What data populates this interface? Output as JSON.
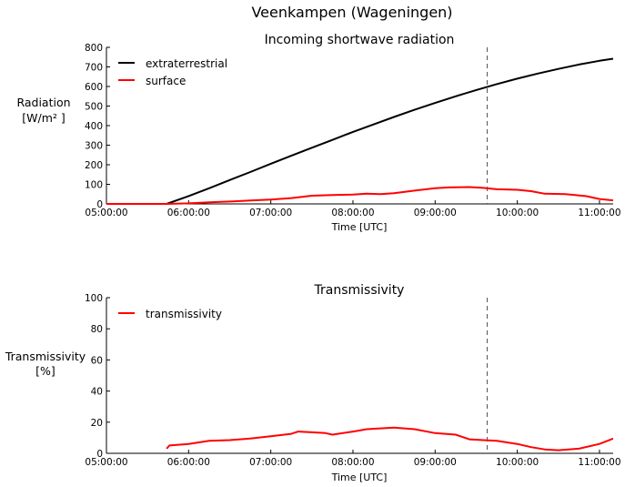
{
  "figure": {
    "title": "Veenkampen (Wageningen)"
  },
  "chart_data": [
    {
      "type": "line",
      "title": "Incoming shortwave radiation",
      "xlabel": "Time [UTC]",
      "ylabel_lines": [
        "Radiation",
        "[W/m² ]"
      ],
      "xlim": [
        "05:00:00",
        "11:10:00"
      ],
      "ylim": [
        0,
        800
      ],
      "y_ticks": [
        "0",
        "100",
        "200",
        "300",
        "400",
        "500",
        "600",
        "700",
        "800"
      ],
      "x_ticks": [
        "05:00:00",
        "06:00:00",
        "07:00:00",
        "08:00:00",
        "09:00:00",
        "10:00:00",
        "11:00:00"
      ],
      "grid": false,
      "legend_position": "top-left",
      "vline_time": "09:38:00",
      "series": [
        {
          "name": "extraterrestrial",
          "color": "#000000",
          "points": [
            [
              "05:00:00",
              0
            ],
            [
              "05:44:00",
              0
            ],
            [
              "06:00:00",
              40
            ],
            [
              "06:15:00",
              80
            ],
            [
              "06:30:00",
              122
            ],
            [
              "06:45:00",
              163
            ],
            [
              "07:00:00",
              205
            ],
            [
              "07:15:00",
              246
            ],
            [
              "07:30:00",
              287
            ],
            [
              "07:45:00",
              327
            ],
            [
              "08:00:00",
              368
            ],
            [
              "08:15:00",
              406
            ],
            [
              "08:30:00",
              444
            ],
            [
              "08:45:00",
              481
            ],
            [
              "09:00:00",
              516
            ],
            [
              "09:15:00",
              550
            ],
            [
              "09:30:00",
              582
            ],
            [
              "09:45:00",
              612
            ],
            [
              "10:00:00",
              640
            ],
            [
              "10:15:00",
              666
            ],
            [
              "10:30:00",
              690
            ],
            [
              "10:45:00",
              712
            ],
            [
              "11:00:00",
              731
            ],
            [
              "11:10:00",
              742
            ]
          ]
        },
        {
          "name": "surface",
          "color": "#ff0000",
          "points": [
            [
              "05:00:00",
              0
            ],
            [
              "05:44:00",
              0
            ],
            [
              "06:00:00",
              3
            ],
            [
              "06:15:00",
              8
            ],
            [
              "06:30:00",
              12
            ],
            [
              "06:45:00",
              17
            ],
            [
              "07:00:00",
              22
            ],
            [
              "07:15:00",
              30
            ],
            [
              "07:30:00",
              42
            ],
            [
              "07:45:00",
              45
            ],
            [
              "08:00:00",
              48
            ],
            [
              "08:10:00",
              52
            ],
            [
              "08:20:00",
              50
            ],
            [
              "08:30:00",
              55
            ],
            [
              "08:45:00",
              68
            ],
            [
              "09:00:00",
              80
            ],
            [
              "09:10:00",
              84
            ],
            [
              "09:25:00",
              86
            ],
            [
              "09:35:00",
              82
            ],
            [
              "09:45:00",
              75
            ],
            [
              "10:00:00",
              72
            ],
            [
              "10:10:00",
              65
            ],
            [
              "10:20:00",
              52
            ],
            [
              "10:35:00",
              50
            ],
            [
              "10:50:00",
              40
            ],
            [
              "11:00:00",
              25
            ],
            [
              "11:10:00",
              18
            ]
          ]
        }
      ]
    },
    {
      "type": "line",
      "title": "Transmissivity",
      "xlabel": "Time [UTC]",
      "ylabel_lines": [
        "Transmissivity",
        "[%]"
      ],
      "xlim": [
        "05:00:00",
        "11:10:00"
      ],
      "ylim": [
        0,
        100
      ],
      "y_ticks": [
        "0",
        "20",
        "40",
        "60",
        "80",
        "100"
      ],
      "x_ticks": [
        "05:00:00",
        "06:00:00",
        "07:00:00",
        "08:00:00",
        "09:00:00",
        "10:00:00",
        "11:00:00"
      ],
      "grid": false,
      "legend_position": "top-left",
      "vline_time": "09:38:00",
      "series": [
        {
          "name": "transmissivity",
          "color": "#ff0000",
          "points": [
            [
              "05:44:00",
              3
            ],
            [
              "05:46:00",
              5
            ],
            [
              "06:00:00",
              6
            ],
            [
              "06:15:00",
              8
            ],
            [
              "06:30:00",
              8.5
            ],
            [
              "06:45:00",
              9.5
            ],
            [
              "07:00:00",
              11
            ],
            [
              "07:15:00",
              12.5
            ],
            [
              "07:20:00",
              14
            ],
            [
              "07:30:00",
              13.5
            ],
            [
              "07:40:00",
              13
            ],
            [
              "07:45:00",
              12
            ],
            [
              "08:00:00",
              14
            ],
            [
              "08:10:00",
              15.5
            ],
            [
              "08:20:00",
              16
            ],
            [
              "08:30:00",
              16.5
            ],
            [
              "08:45:00",
              15.5
            ],
            [
              "09:00:00",
              13
            ],
            [
              "09:15:00",
              12
            ],
            [
              "09:25:00",
              9
            ],
            [
              "09:35:00",
              8.5
            ],
            [
              "09:45:00",
              8
            ],
            [
              "10:00:00",
              6
            ],
            [
              "10:10:00",
              4
            ],
            [
              "10:20:00",
              2.5
            ],
            [
              "10:30:00",
              2
            ],
            [
              "10:45:00",
              3
            ],
            [
              "11:00:00",
              6
            ],
            [
              "11:10:00",
              9.5
            ]
          ]
        }
      ]
    }
  ]
}
